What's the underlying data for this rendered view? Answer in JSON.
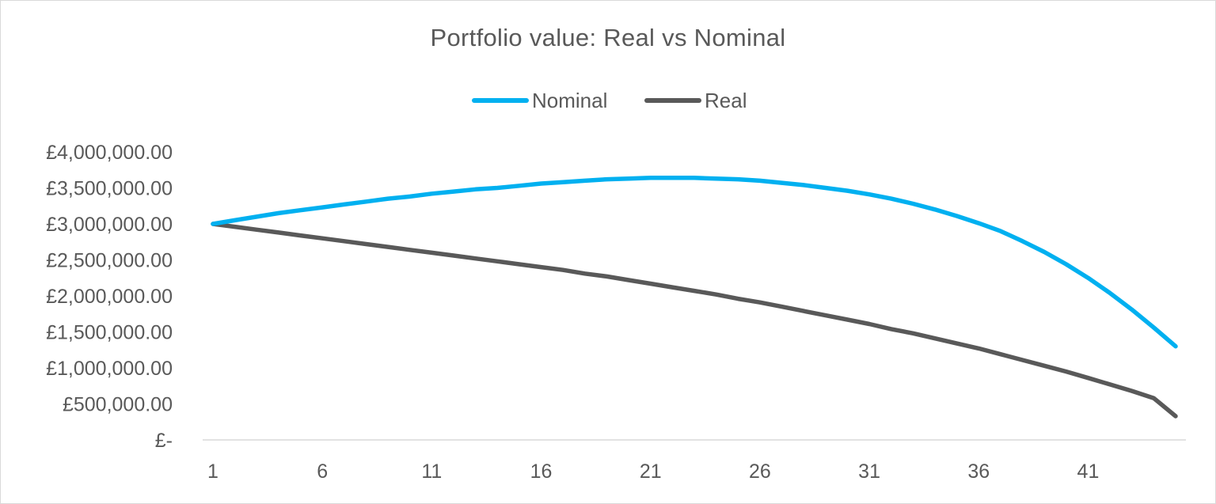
{
  "chart_data": {
    "type": "line",
    "title": "Portfolio value: Real vs Nominal",
    "xlabel": "",
    "ylabel": "",
    "x": [
      1,
      2,
      3,
      4,
      5,
      6,
      7,
      8,
      9,
      10,
      11,
      12,
      13,
      14,
      15,
      16,
      17,
      18,
      19,
      20,
      21,
      22,
      23,
      24,
      25,
      26,
      27,
      28,
      29,
      30,
      31,
      32,
      33,
      34,
      35,
      36,
      37,
      38,
      39,
      40,
      41,
      42,
      43,
      44,
      45
    ],
    "x_ticks": [
      "1",
      "6",
      "11",
      "16",
      "21",
      "26",
      "31",
      "36",
      "41"
    ],
    "y_ticks": [
      "£-",
      "£500,000.00",
      "£1,000,000.00",
      "£1,500,000.00",
      "£2,000,000.00",
      "£2,500,000.00",
      "£3,000,000.00",
      "£3,500,000.00",
      "£4,000,000.00"
    ],
    "ylim": [
      0,
      4000000
    ],
    "grid": "horizontal baseline only",
    "legend_position": "top",
    "series": [
      {
        "name": "Nominal",
        "color": "#00b0f0",
        "values": [
          3000000,
          3050000,
          3100000,
          3150000,
          3190000,
          3230000,
          3270000,
          3310000,
          3350000,
          3380000,
          3420000,
          3450000,
          3480000,
          3500000,
          3530000,
          3560000,
          3580000,
          3600000,
          3620000,
          3630000,
          3640000,
          3640000,
          3640000,
          3630000,
          3620000,
          3600000,
          3570000,
          3540000,
          3500000,
          3460000,
          3410000,
          3350000,
          3280000,
          3200000,
          3110000,
          3010000,
          2900000,
          2760000,
          2610000,
          2440000,
          2250000,
          2040000,
          1810000,
          1560000,
          1300000
        ]
      },
      {
        "name": "Real",
        "color": "#595959",
        "values": [
          3000000,
          2960000,
          2920000,
          2880000,
          2840000,
          2800000,
          2760000,
          2720000,
          2680000,
          2640000,
          2600000,
          2560000,
          2520000,
          2480000,
          2440000,
          2400000,
          2360000,
          2310000,
          2270000,
          2220000,
          2170000,
          2120000,
          2070000,
          2020000,
          1960000,
          1910000,
          1850000,
          1790000,
          1730000,
          1670000,
          1610000,
          1540000,
          1480000,
          1410000,
          1340000,
          1270000,
          1190000,
          1110000,
          1030000,
          950000,
          860000,
          770000,
          680000,
          580000,
          330000
        ]
      }
    ]
  }
}
